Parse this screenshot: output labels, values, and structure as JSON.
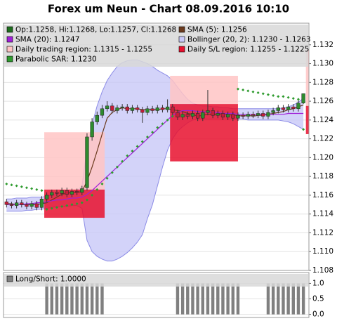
{
  "chart_data": [
    {
      "type": "candlestick",
      "title": "Forex um Neun - Chart 08.09.2016 10:10",
      "xlim": [
        -0.6,
        60.1
      ],
      "ylim": [
        1.108,
        1.1343
      ],
      "yticks": [
        1.108,
        {
          "value": 1.11,
          "label": "1.110"
        },
        1.112,
        1.114,
        1.116,
        1.118,
        {
          "value": 1.12,
          "label": "1.120"
        },
        1.122,
        1.124,
        1.126,
        1.128,
        {
          "value": 1.13,
          "label": "1.130"
        },
        1.132
      ],
      "grid": true,
      "series": [
        {
          "type": "candlestick",
          "name": "Op:1.1258, Hi:1.1268, Lo:1.1257, Cl:1.1268",
          "color": "#1e6e1e",
          "up_color": "#2e8b2e",
          "down_color": "#c41e3a",
          "open": [
            1.1153,
            1.115,
            1.1149,
            1.1152,
            1.115,
            1.1148,
            1.1151,
            1.1147,
            1.1156,
            1.116,
            1.1163,
            1.1162,
            1.1165,
            1.1161,
            1.1164,
            1.1163,
            1.1168,
            1.1222,
            1.1238,
            1.1245,
            1.1252,
            1.1255,
            1.125,
            1.1253,
            1.1254,
            1.125,
            1.1253,
            1.1251,
            1.1248,
            1.1252,
            1.125,
            1.1253,
            1.1251,
            1.1254,
            1.1248,
            1.1243,
            1.1246,
            1.1244,
            1.1247,
            1.1242,
            1.1248,
            1.125,
            1.1245,
            1.1247,
            1.1243,
            1.1246,
            1.1242,
            1.1245,
            1.1244,
            1.1246,
            1.1245,
            1.1247,
            1.1244,
            1.1248,
            1.125,
            1.1253,
            1.1251,
            1.1254,
            1.1252,
            1.1258
          ],
          "high": [
            1.1156,
            1.1153,
            1.1155,
            1.1155,
            1.1153,
            1.1154,
            1.1154,
            1.1159,
            1.1163,
            1.1166,
            1.1166,
            1.1168,
            1.1168,
            1.1167,
            1.1167,
            1.117,
            1.1226,
            1.1242,
            1.1249,
            1.1256,
            1.126,
            1.1258,
            1.1256,
            1.1257,
            1.1257,
            1.1256,
            1.1256,
            1.1254,
            1.1255,
            1.1255,
            1.1256,
            1.1256,
            1.1262,
            1.1257,
            1.1251,
            1.1249,
            1.1249,
            1.125,
            1.125,
            1.1251,
            1.1272,
            1.1253,
            1.125,
            1.125,
            1.1249,
            1.1249,
            1.1248,
            1.1248,
            1.1249,
            1.1249,
            1.125,
            1.125,
            1.1251,
            1.1253,
            1.1256,
            1.1256,
            1.1257,
            1.1257,
            1.1261,
            1.1268
          ],
          "low": [
            1.1147,
            1.1146,
            1.1146,
            1.1147,
            1.1145,
            1.1145,
            1.1144,
            1.1144,
            1.1153,
            1.1157,
            1.1159,
            1.1159,
            1.1158,
            1.1158,
            1.116,
            1.116,
            1.1165,
            1.1218,
            1.1235,
            1.1242,
            1.1249,
            1.1247,
            1.1247,
            1.125,
            1.1247,
            1.1247,
            1.1248,
            1.1237,
            1.1245,
            1.1247,
            1.1247,
            1.1248,
            1.1248,
            1.1245,
            1.124,
            1.124,
            1.1241,
            1.1241,
            1.1239,
            1.1239,
            1.1245,
            1.1242,
            1.1242,
            1.124,
            1.124,
            1.1239,
            1.1239,
            1.1241,
            1.1241,
            1.1242,
            1.1242,
            1.1241,
            1.1241,
            1.1245,
            1.1247,
            1.1248,
            1.1248,
            1.1249,
            1.1249,
            1.1257
          ],
          "close": [
            1.115,
            1.1149,
            1.1152,
            1.115,
            1.1148,
            1.1151,
            1.1147,
            1.1156,
            1.116,
            1.1163,
            1.1162,
            1.1165,
            1.1161,
            1.1164,
            1.1163,
            1.1167,
            1.1222,
            1.1238,
            1.1245,
            1.1252,
            1.1255,
            1.125,
            1.1253,
            1.1254,
            1.125,
            1.1253,
            1.1251,
            1.1248,
            1.1252,
            1.125,
            1.1253,
            1.1251,
            1.1254,
            1.1248,
            1.1243,
            1.1246,
            1.1244,
            1.1247,
            1.1242,
            1.1248,
            1.125,
            1.1245,
            1.1247,
            1.1243,
            1.1246,
            1.1242,
            1.1245,
            1.1244,
            1.1246,
            1.1245,
            1.1247,
            1.1244,
            1.1248,
            1.125,
            1.1253,
            1.1251,
            1.1254,
            1.1252,
            1.1258,
            1.1268
          ]
        },
        {
          "type": "line",
          "name": "SMA (5): 1.1256",
          "color": "#6b3a1e",
          "values": [
            1.1151,
            1.1151,
            1.115,
            1.115,
            1.115,
            1.115,
            1.115,
            1.1151,
            1.1152,
            1.1155,
            1.1158,
            1.1161,
            1.1162,
            1.1163,
            1.1163,
            1.1164,
            1.1175,
            1.119,
            1.1207,
            1.1225,
            1.1242,
            1.1248,
            1.1251,
            1.1253,
            1.1252,
            1.1252,
            1.1252,
            1.1251,
            1.1251,
            1.1251,
            1.1251,
            1.1252,
            1.1252,
            1.1251,
            1.125,
            1.1249,
            1.1247,
            1.1246,
            1.1244,
            1.1245,
            1.1246,
            1.1246,
            1.1246,
            1.1247,
            1.1246,
            1.1245,
            1.1245,
            1.1244,
            1.1245,
            1.1244,
            1.1245,
            1.1245,
            1.1246,
            1.1247,
            1.1248,
            1.1249,
            1.1251,
            1.1252,
            1.1254,
            1.1256
          ]
        },
        {
          "type": "line",
          "name": "SMA (20): 1.1247",
          "color": "#a020d8",
          "values": [
            1.115,
            1.115,
            1.115,
            1.115,
            1.1151,
            1.1151,
            1.1152,
            1.1152,
            1.1153,
            1.1154,
            1.1155,
            1.1155,
            1.1156,
            1.1157,
            1.1157,
            1.1158,
            1.1161,
            1.1165,
            1.117,
            1.1175,
            1.118,
            1.1185,
            1.119,
            1.1195,
            1.12,
            1.1205,
            1.121,
            1.1215,
            1.122,
            1.1225,
            1.123,
            1.1235,
            1.124,
            1.1245,
            1.1248,
            1.125,
            1.125,
            1.125,
            1.1249,
            1.1249,
            1.1248,
            1.1248,
            1.1248,
            1.1247,
            1.1247,
            1.1247,
            1.1246,
            1.1246,
            1.1246,
            1.1246,
            1.1246,
            1.1246,
            1.1246,
            1.1246,
            1.1246,
            1.1246,
            1.1247,
            1.1247,
            1.1247,
            1.1247
          ]
        },
        {
          "type": "band",
          "name": "Bollinger (20, 2): 1.1230 - 1.1263",
          "color": "#c8c8f8",
          "edge_color": "#8c8ce6",
          "upper": [
            1.1156,
            1.1156,
            1.1157,
            1.1157,
            1.1157,
            1.1158,
            1.1158,
            1.1158,
            1.1159,
            1.116,
            1.1161,
            1.1162,
            1.1163,
            1.1164,
            1.1165,
            1.117,
            1.121,
            1.1235,
            1.1255,
            1.127,
            1.1282,
            1.129,
            1.1297,
            1.1301,
            1.1303,
            1.1304,
            1.1304,
            1.1302,
            1.13,
            1.1297,
            1.1293,
            1.129,
            1.1287,
            1.1282,
            1.1275,
            1.1268,
            1.1262,
            1.1258,
            1.1256,
            1.1255,
            1.1255,
            1.1254,
            1.1254,
            1.1253,
            1.1253,
            1.1252,
            1.1252,
            1.1252,
            1.1252,
            1.1252,
            1.1252,
            1.1252,
            1.1252,
            1.1252,
            1.1252,
            1.1253,
            1.1254,
            1.1256,
            1.1259,
            1.1263
          ],
          "lower": [
            1.1143,
            1.1143,
            1.1143,
            1.1143,
            1.1144,
            1.1144,
            1.1145,
            1.1145,
            1.1146,
            1.1147,
            1.1148,
            1.1148,
            1.1148,
            1.1149,
            1.1149,
            1.1146,
            1.1112,
            1.11,
            1.1095,
            1.1092,
            1.109,
            1.109,
            1.1092,
            1.1095,
            1.1099,
            1.1104,
            1.111,
            1.1118,
            1.1135,
            1.115,
            1.117,
            1.119,
            1.1208,
            1.122,
            1.1228,
            1.1233,
            1.1237,
            1.124,
            1.1241,
            1.1241,
            1.1241,
            1.1241,
            1.1241,
            1.1241,
            1.1241,
            1.1241,
            1.1241,
            1.1241,
            1.124,
            1.124,
            1.124,
            1.124,
            1.124,
            1.124,
            1.124,
            1.1239,
            1.1238,
            1.1236,
            1.1233,
            1.123
          ]
        },
        {
          "type": "region",
          "name": "Daily trading region: 1.1315 - 1.1255",
          "color": "#ffc4c4",
          "spans": [
            {
              "from": 7.5,
              "to": 19.5,
              "high": 1.1227,
              "low": 1.1166
            },
            {
              "from": 32.5,
              "to": 46,
              "high": 1.1287,
              "low": 1.1257
            },
            {
              "from": 59.5,
              "to": 60.1,
              "high": 1.1315,
              "low": 1.1255
            }
          ]
        },
        {
          "type": "region",
          "name": "Daily S/L region: 1.1255 - 1.1225",
          "color": "#e8102e",
          "spans": [
            {
              "from": 7.5,
              "to": 19.5,
              "high": 1.1166,
              "low": 1.1136
            },
            {
              "from": 32.5,
              "to": 46,
              "high": 1.1257,
              "low": 1.1196
            },
            {
              "from": 59.5,
              "to": 60.1,
              "high": 1.1255,
              "low": 1.1225
            }
          ]
        },
        {
          "type": "dots",
          "name": "Parabolic SAR: 1.1230",
          "color": "#2e9b2e",
          "values": [
            1.1172,
            1.1171,
            1.117,
            1.1169,
            1.1168,
            1.1167,
            1.1166,
            1.1165,
            1.1145,
            1.1146,
            1.1147,
            1.1148,
            1.1149,
            1.115,
            1.1151,
            1.1152,
            1.1155,
            1.116,
            1.1166,
            1.1172,
            1.1178,
            1.1184,
            1.119,
            1.1196,
            1.1202,
            1.1207,
            1.1212,
            1.1217,
            1.1222,
            1.1227,
            1.1232,
            1.1236,
            1.124,
            1.1244,
            null,
            null,
            null,
            null,
            null,
            null,
            null,
            null,
            null,
            null,
            null,
            null,
            1.1273,
            1.1272,
            1.1271,
            1.127,
            1.1269,
            1.1268,
            1.1267,
            1.1266,
            1.1265,
            1.1265,
            1.1264,
            1.1263,
            1.1262,
            1.123
          ]
        }
      ]
    },
    {
      "type": "bar",
      "xlim": [
        -0.6,
        60.1
      ],
      "ylim": [
        -0.1,
        1.35
      ],
      "yticks": [
        {
          "value": 0,
          "label": "0.0"
        },
        0.5,
        {
          "value": 1,
          "label": "1.0"
        }
      ],
      "grid": true,
      "series": [
        {
          "type": "bar",
          "name": "Long/Short: 1.0000",
          "color": "#808080",
          "values": [
            0,
            0,
            0,
            0,
            0,
            0,
            0,
            0,
            1,
            1,
            1,
            1,
            1,
            1,
            1,
            1,
            1,
            1,
            1,
            1,
            0,
            0,
            0,
            0,
            0,
            0,
            0,
            0,
            0,
            0,
            0,
            0,
            0,
            0,
            1,
            1,
            1,
            1,
            1,
            1,
            1,
            1,
            1,
            1,
            1,
            1,
            1,
            0,
            0,
            0,
            0,
            0,
            1,
            1,
            1,
            1,
            1,
            1,
            1,
            1
          ]
        }
      ]
    }
  ]
}
